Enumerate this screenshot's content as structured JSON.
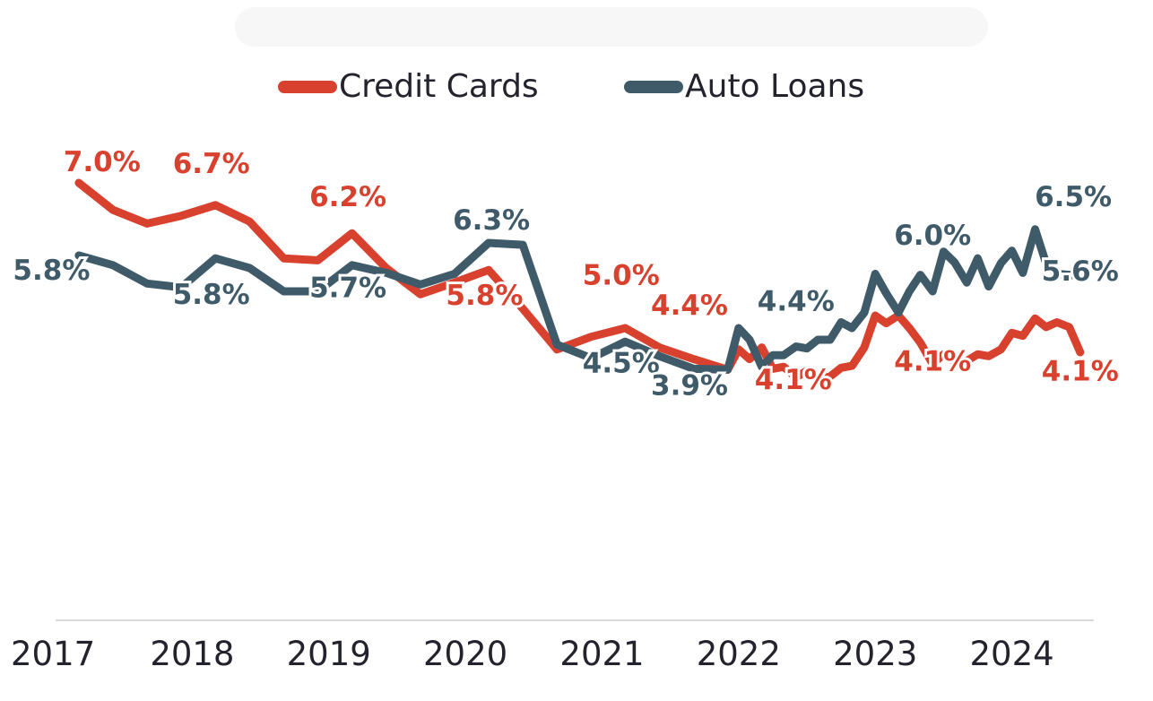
{
  "chart_data": {
    "type": "line",
    "title": "",
    "xlabel": "",
    "ylabel": "",
    "x_tick_labels": [
      "2017",
      "2018",
      "2019",
      "2020",
      "2021",
      "2022",
      "2023",
      "2024"
    ],
    "x_range": [
      2017.0,
      2024.6
    ],
    "ylim": [
      2.5,
      7.5
    ],
    "grid": false,
    "legend_position": "top-center",
    "series": [
      {
        "name": "Credit Cards",
        "color": "#d9412f",
        "points": [
          [
            2017.17,
            7.0
          ],
          [
            2017.42,
            6.72
          ],
          [
            2017.67,
            6.58
          ],
          [
            2017.92,
            6.66
          ],
          [
            2018.17,
            6.77
          ],
          [
            2018.42,
            6.6
          ],
          [
            2018.67,
            6.22
          ],
          [
            2018.92,
            6.2
          ],
          [
            2019.17,
            6.48
          ],
          [
            2019.42,
            6.12
          ],
          [
            2019.67,
            5.85
          ],
          [
            2019.92,
            5.97
          ],
          [
            2020.17,
            6.1
          ],
          [
            2020.42,
            5.7
          ],
          [
            2020.67,
            5.28
          ],
          [
            2020.92,
            5.41
          ],
          [
            2021.17,
            5.5
          ],
          [
            2021.42,
            5.3
          ],
          [
            2021.67,
            5.18
          ],
          [
            2021.92,
            5.07
          ],
          [
            2022.0,
            5.28
          ],
          [
            2022.08,
            5.18
          ],
          [
            2022.17,
            5.3
          ],
          [
            2022.25,
            5.08
          ],
          [
            2022.33,
            5.1
          ],
          [
            2022.42,
            4.99
          ],
          [
            2022.5,
            5.06
          ],
          [
            2022.58,
            4.97
          ],
          [
            2022.67,
            5.0
          ],
          [
            2022.75,
            5.09
          ],
          [
            2022.83,
            5.11
          ],
          [
            2022.92,
            5.3
          ],
          [
            2023.0,
            5.63
          ],
          [
            2023.08,
            5.55
          ],
          [
            2023.17,
            5.63
          ],
          [
            2023.25,
            5.5
          ],
          [
            2023.33,
            5.35
          ],
          [
            2023.42,
            5.13
          ],
          [
            2023.5,
            5.23
          ],
          [
            2023.58,
            5.15
          ],
          [
            2023.67,
            5.16
          ],
          [
            2023.75,
            5.23
          ],
          [
            2023.83,
            5.21
          ],
          [
            2023.92,
            5.28
          ],
          [
            2024.0,
            5.45
          ],
          [
            2024.08,
            5.42
          ],
          [
            2024.17,
            5.6
          ],
          [
            2024.25,
            5.51
          ],
          [
            2024.33,
            5.56
          ],
          [
            2024.42,
            5.51
          ],
          [
            2024.5,
            5.25
          ]
        ]
      },
      {
        "name": "Auto Loans",
        "color": "#3f5b69",
        "points": [
          [
            2017.17,
            6.25
          ],
          [
            2017.42,
            6.15
          ],
          [
            2017.67,
            5.96
          ],
          [
            2017.92,
            5.92
          ],
          [
            2018.17,
            6.22
          ],
          [
            2018.42,
            6.12
          ],
          [
            2018.67,
            5.88
          ],
          [
            2018.92,
            5.88
          ],
          [
            2019.17,
            6.15
          ],
          [
            2019.42,
            6.07
          ],
          [
            2019.67,
            5.95
          ],
          [
            2019.92,
            6.06
          ],
          [
            2020.17,
            6.38
          ],
          [
            2020.42,
            6.36
          ],
          [
            2020.67,
            5.33
          ],
          [
            2020.92,
            5.19
          ],
          [
            2021.17,
            5.36
          ],
          [
            2021.42,
            5.21
          ],
          [
            2021.67,
            5.08
          ],
          [
            2021.92,
            5.07
          ],
          [
            2022.0,
            5.5
          ],
          [
            2022.08,
            5.38
          ],
          [
            2022.17,
            5.1
          ],
          [
            2022.25,
            5.22
          ],
          [
            2022.33,
            5.22
          ],
          [
            2022.42,
            5.31
          ],
          [
            2022.5,
            5.29
          ],
          [
            2022.58,
            5.38
          ],
          [
            2022.67,
            5.38
          ],
          [
            2022.75,
            5.56
          ],
          [
            2022.83,
            5.5
          ],
          [
            2022.92,
            5.66
          ],
          [
            2023.0,
            6.06
          ],
          [
            2023.08,
            5.86
          ],
          [
            2023.17,
            5.66
          ],
          [
            2023.25,
            5.88
          ],
          [
            2023.33,
            6.05
          ],
          [
            2023.42,
            5.88
          ],
          [
            2023.5,
            6.29
          ],
          [
            2023.58,
            6.18
          ],
          [
            2023.67,
            5.97
          ],
          [
            2023.75,
            6.22
          ],
          [
            2023.83,
            5.93
          ],
          [
            2023.92,
            6.17
          ],
          [
            2024.0,
            6.3
          ],
          [
            2024.08,
            6.07
          ],
          [
            2024.17,
            6.52
          ],
          [
            2024.25,
            6.17
          ],
          [
            2024.33,
            6.06
          ],
          [
            2024.42,
            6.05
          ],
          [
            2024.5,
            6.04
          ]
        ]
      }
    ],
    "annotations": [
      {
        "series": "Credit Cards",
        "text": "7.0%",
        "x": 2017.34,
        "y": 7.12
      },
      {
        "series": "Credit Cards",
        "text": "6.7%",
        "x": 2018.14,
        "y": 7.1
      },
      {
        "series": "Credit Cards",
        "text": "6.2%",
        "x": 2019.14,
        "y": 6.76
      },
      {
        "series": "Credit Cards",
        "text": "5.8%",
        "x": 2020.14,
        "y": 5.74
      },
      {
        "series": "Credit Cards",
        "text": "5.0%",
        "x": 2021.14,
        "y": 5.95
      },
      {
        "series": "Credit Cards",
        "text": "4.4%",
        "x": 2021.64,
        "y": 5.64
      },
      {
        "series": "Credit Cards",
        "text": "4.1%",
        "x": 2022.4,
        "y": 4.87
      },
      {
        "series": "Credit Cards",
        "text": "4.1%",
        "x": 2023.42,
        "y": 5.06
      },
      {
        "series": "Credit Cards",
        "text": "4.1%",
        "x": 2024.5,
        "y": 4.96
      },
      {
        "series": "Auto Loans",
        "text": "5.8%",
        "x": 2016.97,
        "y": 6.0
      },
      {
        "series": "Auto Loans",
        "text": "5.8%",
        "x": 2018.14,
        "y": 5.75
      },
      {
        "series": "Auto Loans",
        "text": "5.7%",
        "x": 2019.14,
        "y": 5.82
      },
      {
        "series": "Auto Loans",
        "text": "6.3%",
        "x": 2020.19,
        "y": 6.52
      },
      {
        "series": "Auto Loans",
        "text": "4.5%",
        "x": 2021.14,
        "y": 5.04
      },
      {
        "series": "Auto Loans",
        "text": "3.9%",
        "x": 2021.64,
        "y": 4.81
      },
      {
        "series": "Auto Loans",
        "text": "4.4%",
        "x": 2022.42,
        "y": 5.68
      },
      {
        "series": "Auto Loans",
        "text": "6.0%",
        "x": 2023.42,
        "y": 6.36
      },
      {
        "series": "Auto Loans",
        "text": "6.5%",
        "x": 2024.45,
        "y": 6.76
      },
      {
        "series": "Auto Loans",
        "text": "5.6%",
        "x": 2024.5,
        "y": 5.99
      }
    ]
  }
}
